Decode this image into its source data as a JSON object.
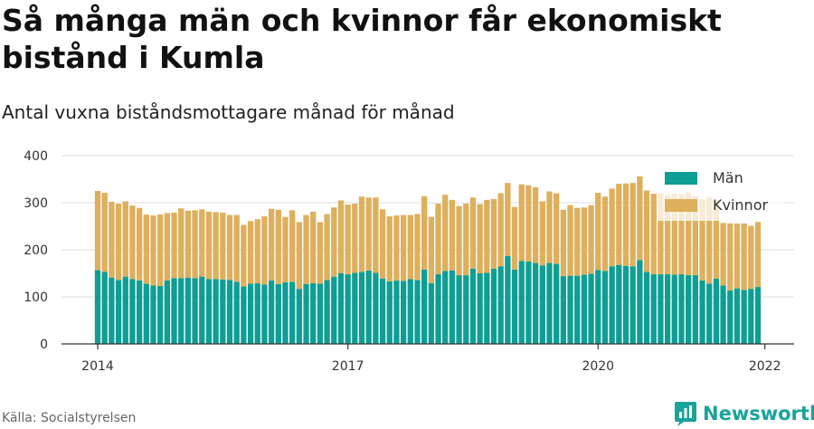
{
  "header": {
    "title": "Så många män och kvinnor får ekonomiskt bistånd i Kumla",
    "subtitle": "Antal vuxna biståndsmottagare månad för månad"
  },
  "footer": {
    "source": "Källa: Socialstyrelsen",
    "brand": "Newsworthy"
  },
  "colors": {
    "men": "#0e9e94",
    "women": "#deaf5c",
    "brand": "#19a39b"
  },
  "chart_data": {
    "type": "bar",
    "stacked": true,
    "x_start": "2014-01",
    "x_end": "2022-01",
    "frequency": "monthly",
    "xticks": [
      "2014",
      "2017",
      "2020",
      "2022"
    ],
    "yticks": [
      0,
      100,
      200,
      300,
      400
    ],
    "ylim": [
      0,
      400
    ],
    "grid": "horizontal",
    "legend_position": "top-right",
    "series": [
      {
        "name": "Män",
        "values": [
          157,
          153,
          141,
          136,
          143,
          138,
          135,
          128,
          124,
          123,
          135,
          140,
          140,
          141,
          140,
          143,
          138,
          138,
          137,
          136,
          132,
          122,
          128,
          129,
          126,
          135,
          127,
          131,
          132,
          117,
          127,
          129,
          128,
          136,
          143,
          150,
          148,
          151,
          153,
          156,
          151,
          139,
          133,
          135,
          134,
          138,
          136,
          158,
          129,
          148,
          155,
          156,
          146,
          146,
          160,
          150,
          151,
          160,
          165,
          187,
          158,
          176,
          175,
          172,
          167,
          172,
          170,
          144,
          145,
          145,
          147,
          149,
          157,
          155,
          165,
          168,
          166,
          165,
          178,
          153,
          148,
          148,
          148,
          147,
          148,
          146,
          146,
          135,
          128,
          139,
          124,
          114,
          118,
          115,
          117,
          121
        ]
      },
      {
        "name": "Kvinnor",
        "values": [
          168,
          168,
          161,
          162,
          160,
          156,
          154,
          147,
          149,
          152,
          143,
          139,
          148,
          142,
          144,
          143,
          143,
          142,
          142,
          138,
          142,
          131,
          133,
          136,
          145,
          152,
          158,
          139,
          152,
          142,
          147,
          152,
          131,
          140,
          147,
          155,
          148,
          147,
          160,
          155,
          160,
          147,
          138,
          138,
          140,
          136,
          140,
          156,
          141,
          150,
          162,
          150,
          147,
          152,
          151,
          147,
          155,
          148,
          155,
          155,
          133,
          163,
          162,
          161,
          136,
          152,
          150,
          141,
          150,
          144,
          143,
          146,
          164,
          158,
          165,
          172,
          175,
          177,
          178,
          173,
          171,
          172,
          168,
          172,
          170,
          176,
          168,
          172,
          183,
          165,
          133,
          142,
          138,
          141,
          134,
          138
        ]
      }
    ]
  }
}
